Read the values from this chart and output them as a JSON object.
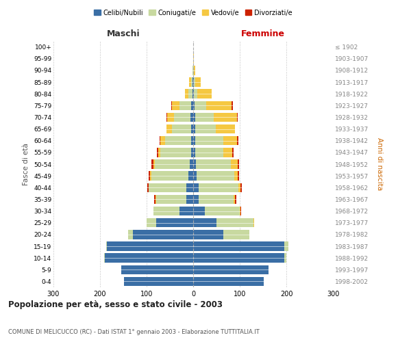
{
  "age_groups": [
    "0-4",
    "5-9",
    "10-14",
    "15-19",
    "20-24",
    "25-29",
    "30-34",
    "35-39",
    "40-44",
    "45-49",
    "50-54",
    "55-59",
    "60-64",
    "65-69",
    "70-74",
    "75-79",
    "80-84",
    "85-89",
    "90-94",
    "95-99",
    "100+"
  ],
  "birth_years": [
    "1998-2002",
    "1993-1997",
    "1988-1992",
    "1983-1987",
    "1978-1982",
    "1973-1977",
    "1968-1972",
    "1963-1967",
    "1958-1962",
    "1953-1957",
    "1948-1952",
    "1943-1947",
    "1938-1942",
    "1933-1937",
    "1928-1932",
    "1923-1927",
    "1918-1922",
    "1913-1917",
    "1908-1912",
    "1903-1907",
    "≤ 1902"
  ],
  "maschi": {
    "celibi": [
      148,
      155,
      190,
      185,
      130,
      80,
      30,
      15,
      15,
      10,
      8,
      5,
      5,
      5,
      6,
      5,
      2,
      1,
      0,
      0,
      0
    ],
    "coniugati": [
      0,
      0,
      1,
      2,
      10,
      20,
      55,
      65,
      80,
      80,
      75,
      65,
      55,
      40,
      35,
      25,
      8,
      4,
      1,
      0,
      0
    ],
    "vedovi": [
      0,
      0,
      0,
      0,
      0,
      0,
      0,
      1,
      1,
      2,
      3,
      5,
      10,
      12,
      15,
      15,
      8,
      4,
      0,
      0,
      0
    ],
    "divorziati": [
      0,
      0,
      0,
      0,
      0,
      0,
      1,
      3,
      3,
      3,
      3,
      3,
      2,
      1,
      1,
      2,
      0,
      0,
      0,
      0,
      0
    ]
  },
  "femmine": {
    "nubili": [
      152,
      162,
      195,
      195,
      65,
      50,
      25,
      12,
      12,
      8,
      6,
      4,
      4,
      4,
      4,
      3,
      1,
      1,
      0,
      0,
      0
    ],
    "coniugate": [
      0,
      0,
      5,
      10,
      55,
      80,
      75,
      75,
      85,
      80,
      75,
      60,
      60,
      45,
      40,
      25,
      8,
      3,
      1,
      0,
      0
    ],
    "vedove": [
      0,
      0,
      0,
      0,
      1,
      1,
      2,
      3,
      5,
      8,
      15,
      20,
      30,
      40,
      50,
      55,
      30,
      12,
      3,
      1,
      0
    ],
    "divorziate": [
      0,
      0,
      0,
      0,
      0,
      0,
      1,
      2,
      2,
      3,
      3,
      3,
      3,
      1,
      2,
      2,
      1,
      0,
      0,
      0,
      0
    ]
  },
  "colors": {
    "celibi": "#3a6ea5",
    "coniugati": "#c8d9a0",
    "vedovi": "#f5c842",
    "divorziati": "#cc2200"
  },
  "legend_labels": [
    "Celibi/Nubili",
    "Coniugati/e",
    "Vedovi/e",
    "Divorziati/e"
  ],
  "title": "Popolazione per età, sesso e stato civile - 2003",
  "subtitle": "COMUNE DI MELICUCCO (RC) - Dati ISTAT 1° gennaio 2003 - Elaborazione TUTTITALIA.IT",
  "label_maschi": "Maschi",
  "label_femmine": "Femmine",
  "ylabel_left": "Fasce di età",
  "ylabel_right": "Anni di nascita",
  "xlim": 300,
  "background_color": "#ffffff",
  "grid_color": "#cccccc"
}
